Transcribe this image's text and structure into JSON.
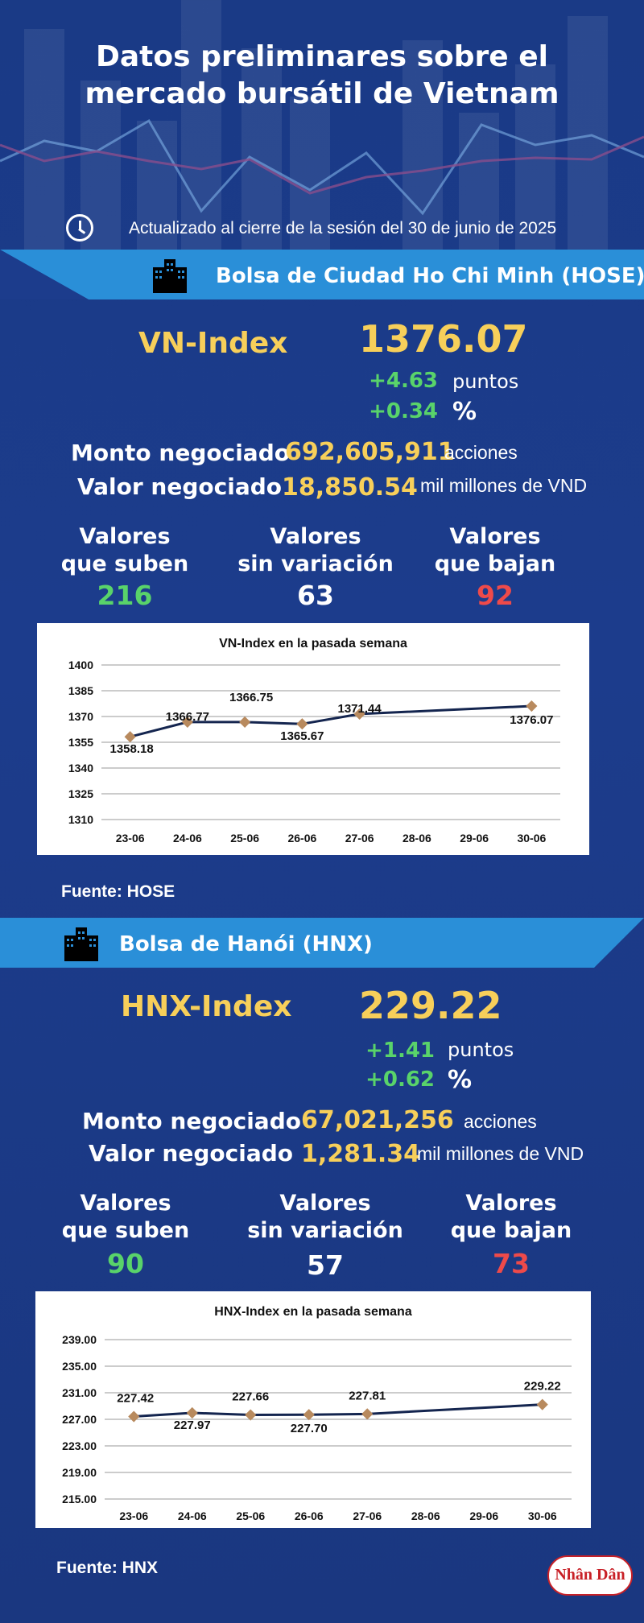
{
  "header": {
    "title_line1": "Datos preliminares sobre el",
    "title_line2": "mercado bursátil de Vietnam",
    "updated": "Actualizado al cierre de la sesión del 30 de junio de 2025",
    "clock_icon": "clock-icon"
  },
  "hose": {
    "banner": "Bolsa de Ciudad Ho Chi Minh (HOSE)",
    "index_name": "VN-Index",
    "index_value": "1376.07",
    "change_points": "+4.63",
    "points_label": "puntos",
    "change_pct": "+0.34",
    "pct_label": "%",
    "volume_label": "Monto negociado",
    "volume_value": "692,605,911",
    "volume_unit": "acciones",
    "value_label": "Valor negociado",
    "value_value": "18,850.54",
    "value_unit": "mil millones de VND",
    "up_label1": "Valores",
    "up_label2": "que suben",
    "up_count": "216",
    "flat_label1": "Valores",
    "flat_label2": "sin variación",
    "flat_count": "63",
    "down_label1": "Valores",
    "down_label2": "que bajan",
    "down_count": "92",
    "source": "Fuente: HOSE"
  },
  "hnx": {
    "banner": "Bolsa de Hanói (HNX)",
    "index_name": "HNX-Index",
    "index_value": "229.22",
    "change_points": "+1.41",
    "points_label": "puntos",
    "change_pct": "+0.62",
    "pct_label": "%",
    "volume_label": "Monto negociado",
    "volume_value": "67,021,256",
    "volume_unit": "acciones",
    "value_label": "Valor negociado",
    "value_value": "1,281.34",
    "value_unit": "mil millones de VND",
    "up_label1": "Valores",
    "up_label2": "que suben",
    "up_count": "90",
    "flat_label1": "Valores",
    "flat_label2": "sin variación",
    "flat_count": "57",
    "down_label1": "Valores",
    "down_label2": "que bajan",
    "down_count": "73",
    "source": "Fuente:  HNX"
  },
  "colors": {
    "gold": "#f7cf5a",
    "green": "#59d36a",
    "red": "#ee4a4a",
    "line": "#14254f",
    "marker": "#b88a5e"
  },
  "logo": "Nhân Dân",
  "chart_data": [
    {
      "type": "line",
      "title": "VN-Index en la pasada semana",
      "categories": [
        "23-06",
        "24-06",
        "25-06",
        "26-06",
        "27-06",
        "28-06",
        "29-06",
        "30-06"
      ],
      "yticks": [
        "1400",
        "1385",
        "1370",
        "1355",
        "1340",
        "1325",
        "1310"
      ],
      "ylim": [
        1310,
        1400
      ],
      "grid": true,
      "series": [
        {
          "points": [
            {
              "x": "23-06",
              "y": 1358.18,
              "label": "1358.18"
            },
            {
              "x": "24-06",
              "y": 1366.77,
              "label": "1366.77"
            },
            {
              "x": "25-06",
              "y": 1366.75,
              "label": "1366.75"
            },
            {
              "x": "26-06",
              "y": 1365.67,
              "label": "1365.67"
            },
            {
              "x": "27-06",
              "y": 1371.44,
              "label": "1371.44"
            },
            {
              "x": "30-06",
              "y": 1376.07,
              "label": "1376.07"
            }
          ]
        }
      ]
    },
    {
      "type": "line",
      "title": "HNX-Index en la pasada semana",
      "categories": [
        "23-06",
        "24-06",
        "25-06",
        "26-06",
        "27-06",
        "28-06",
        "29-06",
        "30-06"
      ],
      "yticks": [
        "239.00",
        "235.00",
        "231.00",
        "227.00",
        "223.00",
        "219.00",
        "215.00"
      ],
      "ylim": [
        215,
        239
      ],
      "grid": true,
      "series": [
        {
          "points": [
            {
              "x": "23-06",
              "y": 227.42,
              "label": "227.42"
            },
            {
              "x": "24-06",
              "y": 227.97,
              "label": "227.97"
            },
            {
              "x": "25-06",
              "y": 227.66,
              "label": "227.66"
            },
            {
              "x": "26-06",
              "y": 227.7,
              "label": "227.70"
            },
            {
              "x": "27-06",
              "y": 227.81,
              "label": "227.81"
            },
            {
              "x": "30-06",
              "y": 229.22,
              "label": "229.22"
            }
          ]
        }
      ]
    }
  ]
}
